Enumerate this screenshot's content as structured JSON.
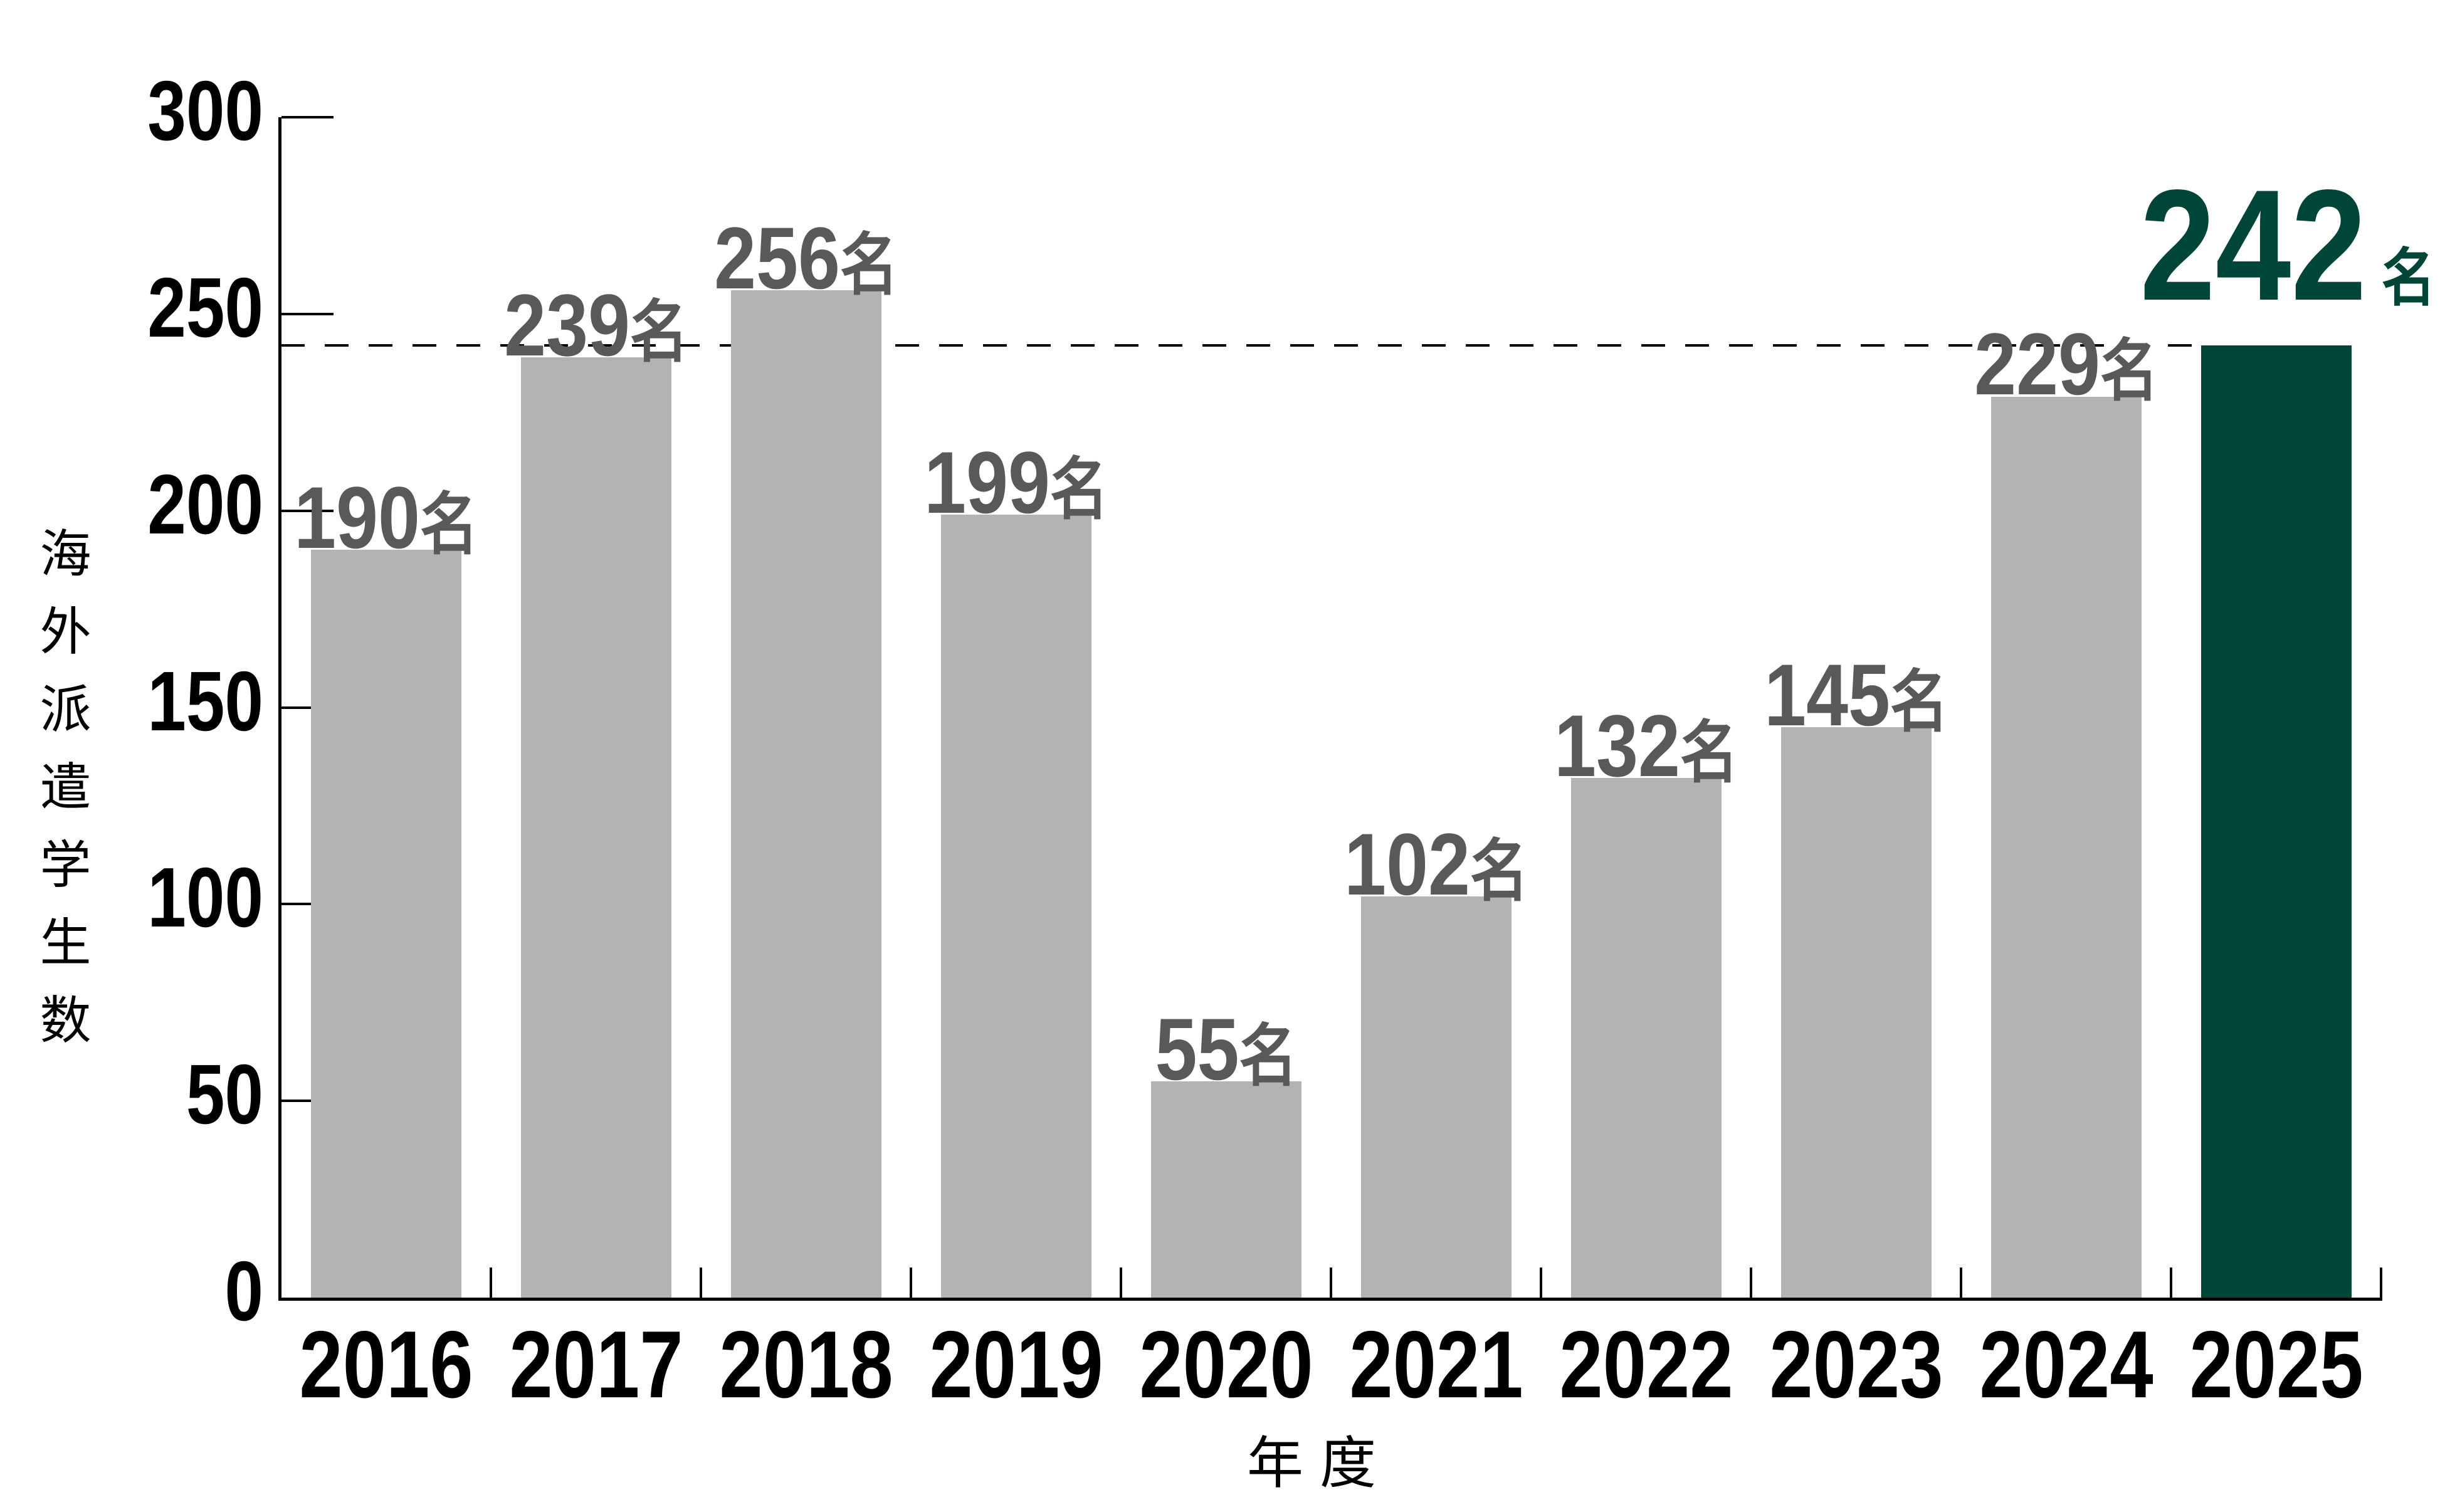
{
  "chart_data": {
    "type": "bar",
    "title": "",
    "categories": [
      "2016",
      "2017",
      "2018",
      "2019",
      "2020",
      "2021",
      "2022",
      "2023",
      "2024",
      "2025"
    ],
    "values": [
      190,
      239,
      256,
      199,
      55,
      102,
      132,
      145,
      229,
      242
    ],
    "value_suffix": "名",
    "value_labels": [
      "190名",
      "239名",
      "256名",
      "199名",
      "55名",
      "102名",
      "132名",
      "145名",
      "229名",
      "242名"
    ],
    "xlabel": "年度",
    "ylabel": "海外派遣学生数",
    "ylim": [
      0,
      300
    ],
    "yticks": [
      0,
      50,
      100,
      150,
      200,
      250,
      300
    ],
    "grid": false,
    "legend_position": "none",
    "reference_line": {
      "value": 242,
      "style": "dashed",
      "color": "#000000"
    },
    "highlight": {
      "category": "2025",
      "index": 9,
      "value": 242,
      "color": "#004638"
    },
    "colors": {
      "bar": "#b3b3b3",
      "highlight_bar": "#004638",
      "value_label": "#595959",
      "highlight_label": "#004638",
      "axis": "#000000",
      "tick_label": "#000000"
    }
  }
}
